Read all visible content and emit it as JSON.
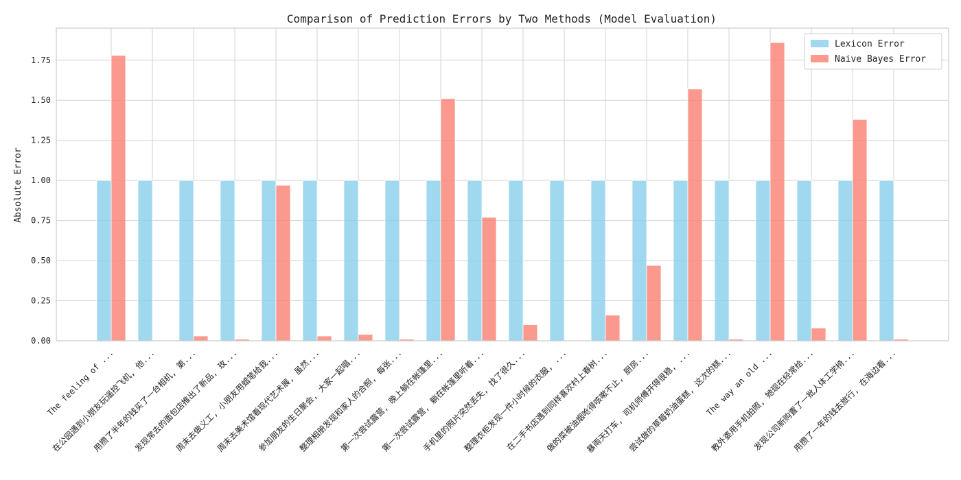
{
  "chart_data": {
    "type": "bar",
    "title": "Comparison of Prediction Errors by Two Methods (Model Evaluation)",
    "xlabel": "",
    "ylabel": "Absolute Error",
    "ylim": [
      0,
      1.95
    ],
    "yticks": [
      "0.00",
      "0.25",
      "0.50",
      "0.75",
      "1.00",
      "1.25",
      "1.50",
      "1.75"
    ],
    "grid": true,
    "legend_position": "top-right",
    "categories": [
      "The feeling of ...",
      "在公园遇到小朋友玩遥控飞机, 他...",
      "用攒了半年的钱买了一台相机, 第...",
      "发现常去的面包店推出了新品, 玫...",
      "周末去做义工, 小朋友用蜡笔给我...",
      "周末去美术馆看现代艺术展, 虽然...",
      "参加朋友的生日聚会, 大家一起唱...",
      "整理相册发现和家人的合照, 每张...",
      "第一次尝试露营, 晚上躺在帐篷里...",
      "第一次尝试露营, 躺在帐篷里听着...",
      "手机里的照片突然丢失, 找了很久...",
      "整理衣柜发现一件小时候的衣服, ...",
      "在二手书店遇到同样喜欢村上春树...",
      "做的菜被油烟呛得咳嗽不止, 厨房...",
      "暴雨天打车, 司机师傅开得很稳, ...",
      "尝试做的草莓奶油蛋糕, 这次的糕...",
      "The way an old ...",
      "教外婆用手机拍照, 她现在经常给...",
      "发现公司新购置了一批人体工学椅...",
      "用攒了一年的钱去旅行, 在海边看..."
    ],
    "series": [
      {
        "name": "Lexicon Error",
        "color": "#87ceeb",
        "values": [
          1,
          1,
          1,
          1,
          1,
          1,
          1,
          1,
          1,
          1,
          1,
          1,
          1,
          1,
          1,
          1,
          1,
          1,
          1,
          1
        ]
      },
      {
        "name": "Naive Bayes Error",
        "color": "#fa8072",
        "values": [
          1.78,
          0.0,
          0.03,
          0.01,
          0.97,
          0.03,
          0.04,
          0.01,
          1.51,
          0.77,
          0.1,
          0.0,
          0.16,
          0.47,
          1.57,
          0.01,
          1.86,
          0.08,
          1.38,
          0.01
        ]
      }
    ]
  }
}
